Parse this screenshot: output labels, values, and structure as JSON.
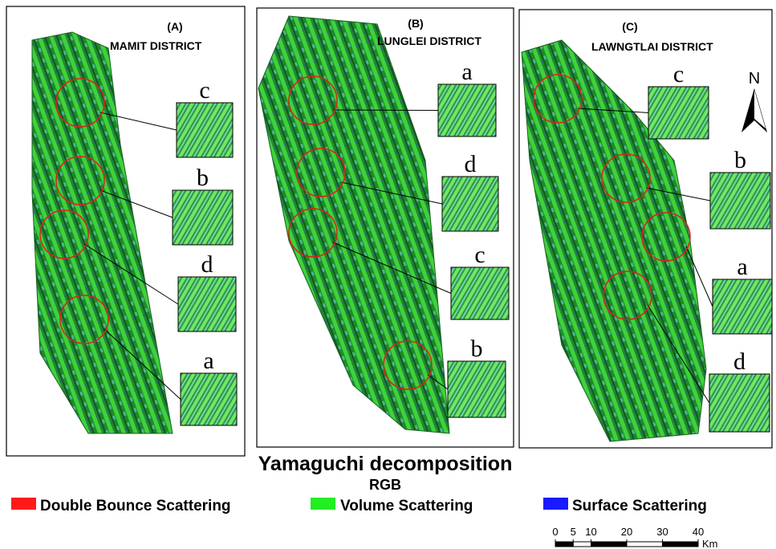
{
  "panels": [
    {
      "label": "(A)",
      "title": "MAMIT DISTRICT",
      "insets": [
        "c",
        "b",
        "d",
        "a"
      ]
    },
    {
      "label": "(B)",
      "title": "LUNGLEI DISTRICT",
      "insets": [
        "a",
        "d",
        "c",
        "b"
      ]
    },
    {
      "label": "(C)",
      "title": "LAWNGTLAI DISTRICT",
      "insets": [
        "c",
        "b",
        "a",
        "d"
      ]
    }
  ],
  "north": "N",
  "legend": {
    "title": "Yamaguchi decomposition",
    "subtitle": "RGB",
    "items": [
      {
        "name": "Double Bounce Scattering",
        "color": "#ff1a1a"
      },
      {
        "name": "Volume Scattering",
        "color": "#22ee22"
      },
      {
        "name": "Surface Scattering",
        "color": "#1a1aff"
      }
    ]
  },
  "scale": {
    "ticks": [
      0,
      5,
      10,
      20,
      30,
      40
    ],
    "unit": "Km"
  }
}
